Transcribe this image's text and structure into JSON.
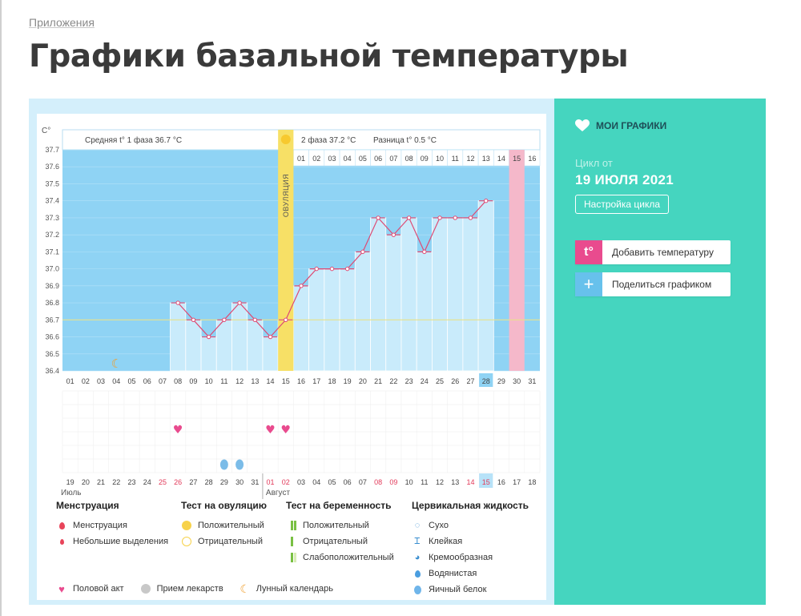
{
  "breadcrumb": "Приложения",
  "title": "Графики базальной температуры",
  "chart_data": {
    "type": "line",
    "ylabel": "C°",
    "y_ticks": [
      "37.7",
      "37.6",
      "37.5",
      "37.4",
      "37.3",
      "37.2",
      "37.1",
      "37.0",
      "36.9",
      "36.8",
      "36.7",
      "36.6",
      "36.5",
      "36.4"
    ],
    "ylim": [
      36.4,
      37.7
    ],
    "x_days": [
      "01",
      "02",
      "03",
      "04",
      "05",
      "06",
      "07",
      "08",
      "09",
      "10",
      "11",
      "12",
      "13",
      "14",
      "15",
      "16",
      "17",
      "18",
      "19",
      "20",
      "21",
      "22",
      "23",
      "24",
      "25",
      "26",
      "27",
      "28",
      "29",
      "30",
      "31"
    ],
    "temperatures": [
      null,
      null,
      null,
      null,
      null,
      null,
      null,
      36.8,
      36.7,
      36.6,
      36.7,
      36.8,
      36.7,
      36.6,
      36.7,
      36.9,
      37.0,
      37.0,
      37.0,
      37.1,
      37.3,
      37.2,
      37.3,
      37.1,
      37.3,
      37.3,
      37.3,
      37.4,
      null,
      null,
      null
    ],
    "average_line": 36.7,
    "phase1_text": "Средняя t° 1 фаза 36.7 °C",
    "phase2_text": "2 фаза 37.2 °C",
    "diff_text": "Разница t° 0.5 °C",
    "ovulation_label": "ОВУЛЯЦИЯ",
    "ovulation_day": 15,
    "phase2_days": [
      "01",
      "02",
      "03",
      "04",
      "05",
      "06",
      "07",
      "08",
      "09",
      "10",
      "11",
      "12",
      "13",
      "14",
      "15",
      "16"
    ],
    "highlight_cycle_day": "15",
    "highlight_x_day": "28",
    "date_row": [
      "19",
      "20",
      "21",
      "22",
      "23",
      "24",
      "25",
      "26",
      "27",
      "28",
      "29",
      "30",
      "31",
      "01",
      "02",
      "03",
      "04",
      "05",
      "06",
      "07",
      "08",
      "09",
      "10",
      "11",
      "12",
      "13",
      "14",
      "15",
      "16",
      "17",
      "18"
    ],
    "weekend_dates": [
      6,
      7,
      13,
      14,
      20,
      21,
      27
    ],
    "month_labels": [
      "Июль",
      "Август"
    ],
    "heart_days": [
      8,
      14,
      15
    ],
    "drop_days": [
      11,
      12
    ],
    "moon_day": 4,
    "highlight_date_idx": 28
  },
  "legend": {
    "menstruation": {
      "title": "Менструация",
      "items": [
        "Менструация",
        "Небольшие выделения"
      ]
    },
    "ovulation_test": {
      "title": "Тест на овуляцию",
      "items": [
        "Положительный",
        "Отрицательный"
      ]
    },
    "pregnancy_test": {
      "title": "Тест на беременность",
      "items": [
        "Положительный",
        "Отрицательный",
        "Слабоположительный"
      ]
    },
    "cervical": {
      "title": "Цервикальная жидкость",
      "items": [
        "Сухо",
        "Клейкая",
        "Кремообразная",
        "Водянистая",
        "Яичный белок"
      ]
    },
    "bottom": [
      "Половой акт",
      "Прием лекарств",
      "Лунный календарь"
    ]
  },
  "sidebar": {
    "my_charts": "МОИ ГРАФИКИ",
    "cycle_label": "Цикл от",
    "cycle_date": "19 ИЮЛЯ 2021",
    "cycle_settings": "Настройка цикла",
    "add_temp_icon": "t°",
    "add_temp": "Добавить температуру",
    "share_icon": "+",
    "share": "Поделиться графиком"
  },
  "colors": {
    "bg_blue": "#8fd3f4",
    "bar": "#c9ebfb",
    "line": "#de4b74",
    "ovulation": "#f7e066",
    "pink": "#f5b8ca",
    "teal": "#45d5bf"
  }
}
